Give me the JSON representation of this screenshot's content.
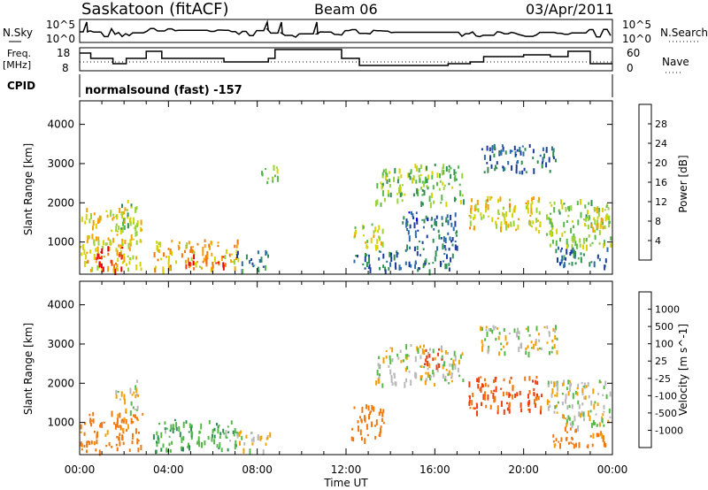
{
  "header": {
    "station": "Saskatoon (fitACF)",
    "beam": "Beam 06",
    "date": "03/Apr/2011"
  },
  "panels": {
    "nsky": {
      "label": "N.Sky",
      "ticks": [
        "10^5",
        "10^0"
      ],
      "right_label": "N.Search",
      "right_ticks": [
        "10^5",
        "10^0"
      ]
    },
    "freq": {
      "label": "Freq.",
      "unit": "[MHz]",
      "ticks": [
        "18",
        "8"
      ],
      "right_label": "Nave",
      "right_ticks": [
        "60",
        "0"
      ]
    },
    "cpid": {
      "label": "CPID",
      "value": "normalsound (fast) -157"
    }
  },
  "colors": {
    "power": [
      "#0000ff",
      "#1e3c9c",
      "#2a6aa8",
      "#2f8e52",
      "#57b84a",
      "#99d23a",
      "#d6d300",
      "#f5a000",
      "#f07810",
      "#ee3f10",
      "#e60000"
    ],
    "velocity": [
      "#1e3c9c",
      "#2a6aa8",
      "#2f8e52",
      "#57b84a",
      "#b9b9b9",
      "#f5a000",
      "#f07810",
      "#ee3f10",
      "#e60000"
    ]
  },
  "chart_data": [
    {
      "type": "heatmap",
      "title": "Power",
      "xlabel": "Time UT",
      "ylabel": "Slant Range [km]",
      "x_ticks": [
        "00:00",
        "04:00",
        "08:00",
        "12:00",
        "16:00",
        "20:00",
        "00:00"
      ],
      "xlim_hours": [
        0,
        24
      ],
      "y_ticks": [
        1000,
        2000,
        3000,
        4000
      ],
      "ylim_km": [
        180,
        4600
      ],
      "colorbar": {
        "label": "Power [dB]",
        "ticks": [
          4,
          8,
          12,
          16,
          20,
          24,
          28
        ],
        "range": [
          0,
          30
        ]
      },
      "regions": [
        {
          "t": [
            0.0,
            2.8
          ],
          "r": [
            300,
            1900
          ],
          "v": 18
        },
        {
          "t": [
            0.6,
            1.9
          ],
          "r": [
            300,
            900
          ],
          "v": 26
        },
        {
          "t": [
            1.6,
            2.6
          ],
          "r": [
            1300,
            2100
          ],
          "v": 14
        },
        {
          "t": [
            3.3,
            7.2
          ],
          "r": [
            300,
            1100
          ],
          "v": 20
        },
        {
          "t": [
            4.6,
            6.6
          ],
          "r": [
            400,
            700
          ],
          "v": 27
        },
        {
          "t": [
            7.0,
            8.6
          ],
          "r": [
            300,
            800
          ],
          "v": 8
        },
        {
          "t": [
            8.1,
            8.9
          ],
          "r": [
            2500,
            3000
          ],
          "v": 14
        },
        {
          "t": [
            12.2,
            13.7
          ],
          "r": [
            900,
            1500
          ],
          "v": 16
        },
        {
          "t": [
            12.2,
            16.8
          ],
          "r": [
            300,
            800
          ],
          "v": 7
        },
        {
          "t": [
            13.3,
            17.3
          ],
          "r": [
            2000,
            3000
          ],
          "v": 14
        },
        {
          "t": [
            14.5,
            17.0
          ],
          "r": [
            800,
            1800
          ],
          "v": 6
        },
        {
          "t": [
            17.5,
            20.8
          ],
          "r": [
            1300,
            2200
          ],
          "v": 18
        },
        {
          "t": [
            18.0,
            21.5
          ],
          "r": [
            2800,
            3500
          ],
          "v": 7
        },
        {
          "t": [
            21.0,
            23.9
          ],
          "r": [
            900,
            2100
          ],
          "v": 14
        },
        {
          "t": [
            22.7,
            23.8
          ],
          "r": [
            1300,
            1900
          ],
          "v": 18
        },
        {
          "t": [
            21.3,
            23.8
          ],
          "r": [
            400,
            900
          ],
          "v": 8
        }
      ]
    },
    {
      "type": "heatmap",
      "title": "Velocity",
      "xlabel": "Time UT",
      "ylabel": "Slant Range [km]",
      "x_ticks": [
        "00:00",
        "04:00",
        "08:00",
        "12:00",
        "16:00",
        "20:00",
        "00:00"
      ],
      "xlim_hours": [
        0,
        24
      ],
      "y_ticks": [
        1000,
        2000,
        3000,
        4000
      ],
      "ylim_km": [
        180,
        4600
      ],
      "colorbar": {
        "label": "Velocity [m s^-1]",
        "ticks": [
          "1000",
          "500",
          "100",
          "25",
          "-25",
          "-100",
          "-500",
          "-1000"
        ]
      },
      "regions": [
        {
          "t": [
            0.0,
            2.8
          ],
          "r": [
            300,
            1300
          ],
          "v": -150
        },
        {
          "t": [
            1.6,
            2.6
          ],
          "r": [
            1300,
            2100
          ],
          "v": 0
        },
        {
          "t": [
            3.3,
            7.2
          ],
          "r": [
            300,
            1100
          ],
          "v": 80
        },
        {
          "t": [
            7.0,
            8.6
          ],
          "r": [
            300,
            800
          ],
          "v": 0
        },
        {
          "t": [
            12.2,
            13.7
          ],
          "r": [
            600,
            1500
          ],
          "v": -200
        },
        {
          "t": [
            13.3,
            17.3
          ],
          "r": [
            2000,
            3000
          ],
          "v": 0
        },
        {
          "t": [
            15.5,
            16.3
          ],
          "r": [
            2400,
            2900
          ],
          "v": -800
        },
        {
          "t": [
            17.5,
            20.8
          ],
          "r": [
            1300,
            2200
          ],
          "v": -500
        },
        {
          "t": [
            18.0,
            21.5
          ],
          "r": [
            2800,
            3500
          ],
          "v": 0
        },
        {
          "t": [
            21.0,
            23.9
          ],
          "r": [
            900,
            2100
          ],
          "v": 0
        },
        {
          "t": [
            21.3,
            23.8
          ],
          "r": [
            400,
            900
          ],
          "v": -150
        }
      ]
    }
  ]
}
